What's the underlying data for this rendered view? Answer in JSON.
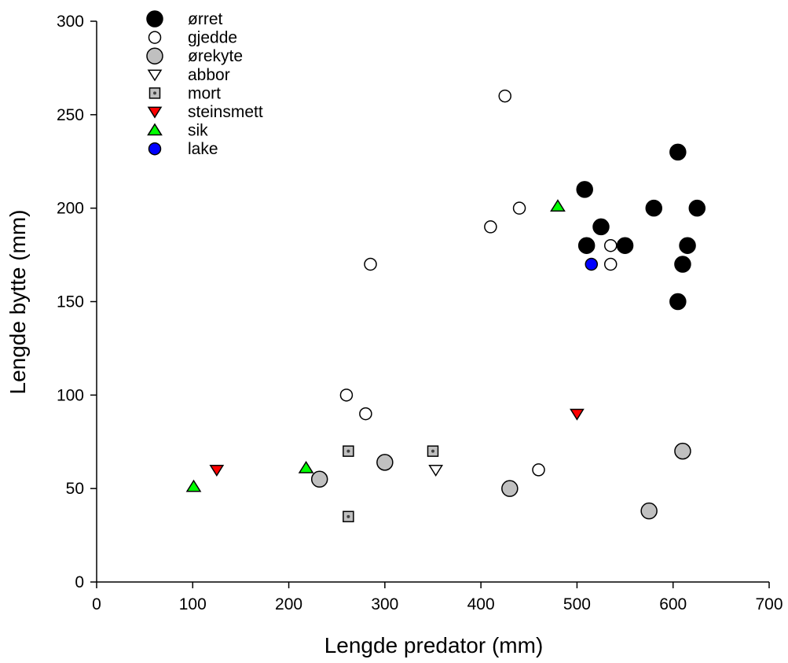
{
  "chart_data": {
    "type": "scatter",
    "title": "",
    "xlabel": "Lengde predator (mm)",
    "ylabel": "Lengde bytte (mm)",
    "xlim": [
      0,
      700
    ],
    "ylim": [
      0,
      300
    ],
    "xticks": [
      0,
      100,
      200,
      300,
      400,
      500,
      600,
      700
    ],
    "yticks": [
      0,
      50,
      100,
      150,
      200,
      250,
      300
    ],
    "grid": false,
    "legend_position": "top-left",
    "series": [
      {
        "name": "ørret",
        "marker": "circle-large",
        "fill": "#000000",
        "points": [
          [
            508,
            210
          ],
          [
            510,
            180
          ],
          [
            525,
            190
          ],
          [
            550,
            180
          ],
          [
            580,
            200
          ],
          [
            605,
            230
          ],
          [
            605,
            150
          ],
          [
            610,
            170
          ],
          [
            615,
            180
          ],
          [
            625,
            200
          ]
        ]
      },
      {
        "name": "gjedde",
        "marker": "circle",
        "fill": "#ffffff",
        "points": [
          [
            260,
            100
          ],
          [
            280,
            90
          ],
          [
            285,
            170
          ],
          [
            410,
            190
          ],
          [
            425,
            260
          ],
          [
            440,
            200
          ],
          [
            460,
            60
          ],
          [
            535,
            180
          ],
          [
            535,
            170
          ]
        ]
      },
      {
        "name": "ørekyte",
        "marker": "circle-large",
        "fill": "#c0c0c0",
        "points": [
          [
            232,
            55
          ],
          [
            300,
            64
          ],
          [
            430,
            50
          ],
          [
            575,
            38
          ],
          [
            610,
            70
          ]
        ]
      },
      {
        "name": "abbor",
        "marker": "triangle-down",
        "fill": "#ffffff",
        "points": [
          [
            353,
            60
          ]
        ]
      },
      {
        "name": "mort",
        "marker": "square",
        "fill": "#c0c0c0",
        "points": [
          [
            262,
            70
          ],
          [
            262,
            35
          ],
          [
            350,
            70
          ]
        ]
      },
      {
        "name": "steinsmett",
        "marker": "triangle-down",
        "fill": "#ff0000",
        "points": [
          [
            125,
            60
          ],
          [
            500,
            90
          ]
        ]
      },
      {
        "name": "sik",
        "marker": "triangle-up",
        "fill": "#00ff00",
        "points": [
          [
            101,
            51
          ],
          [
            218,
            61
          ],
          [
            480,
            201
          ]
        ]
      },
      {
        "name": "lake",
        "marker": "circle",
        "fill": "#0000ff",
        "points": [
          [
            515,
            170
          ]
        ]
      }
    ]
  }
}
